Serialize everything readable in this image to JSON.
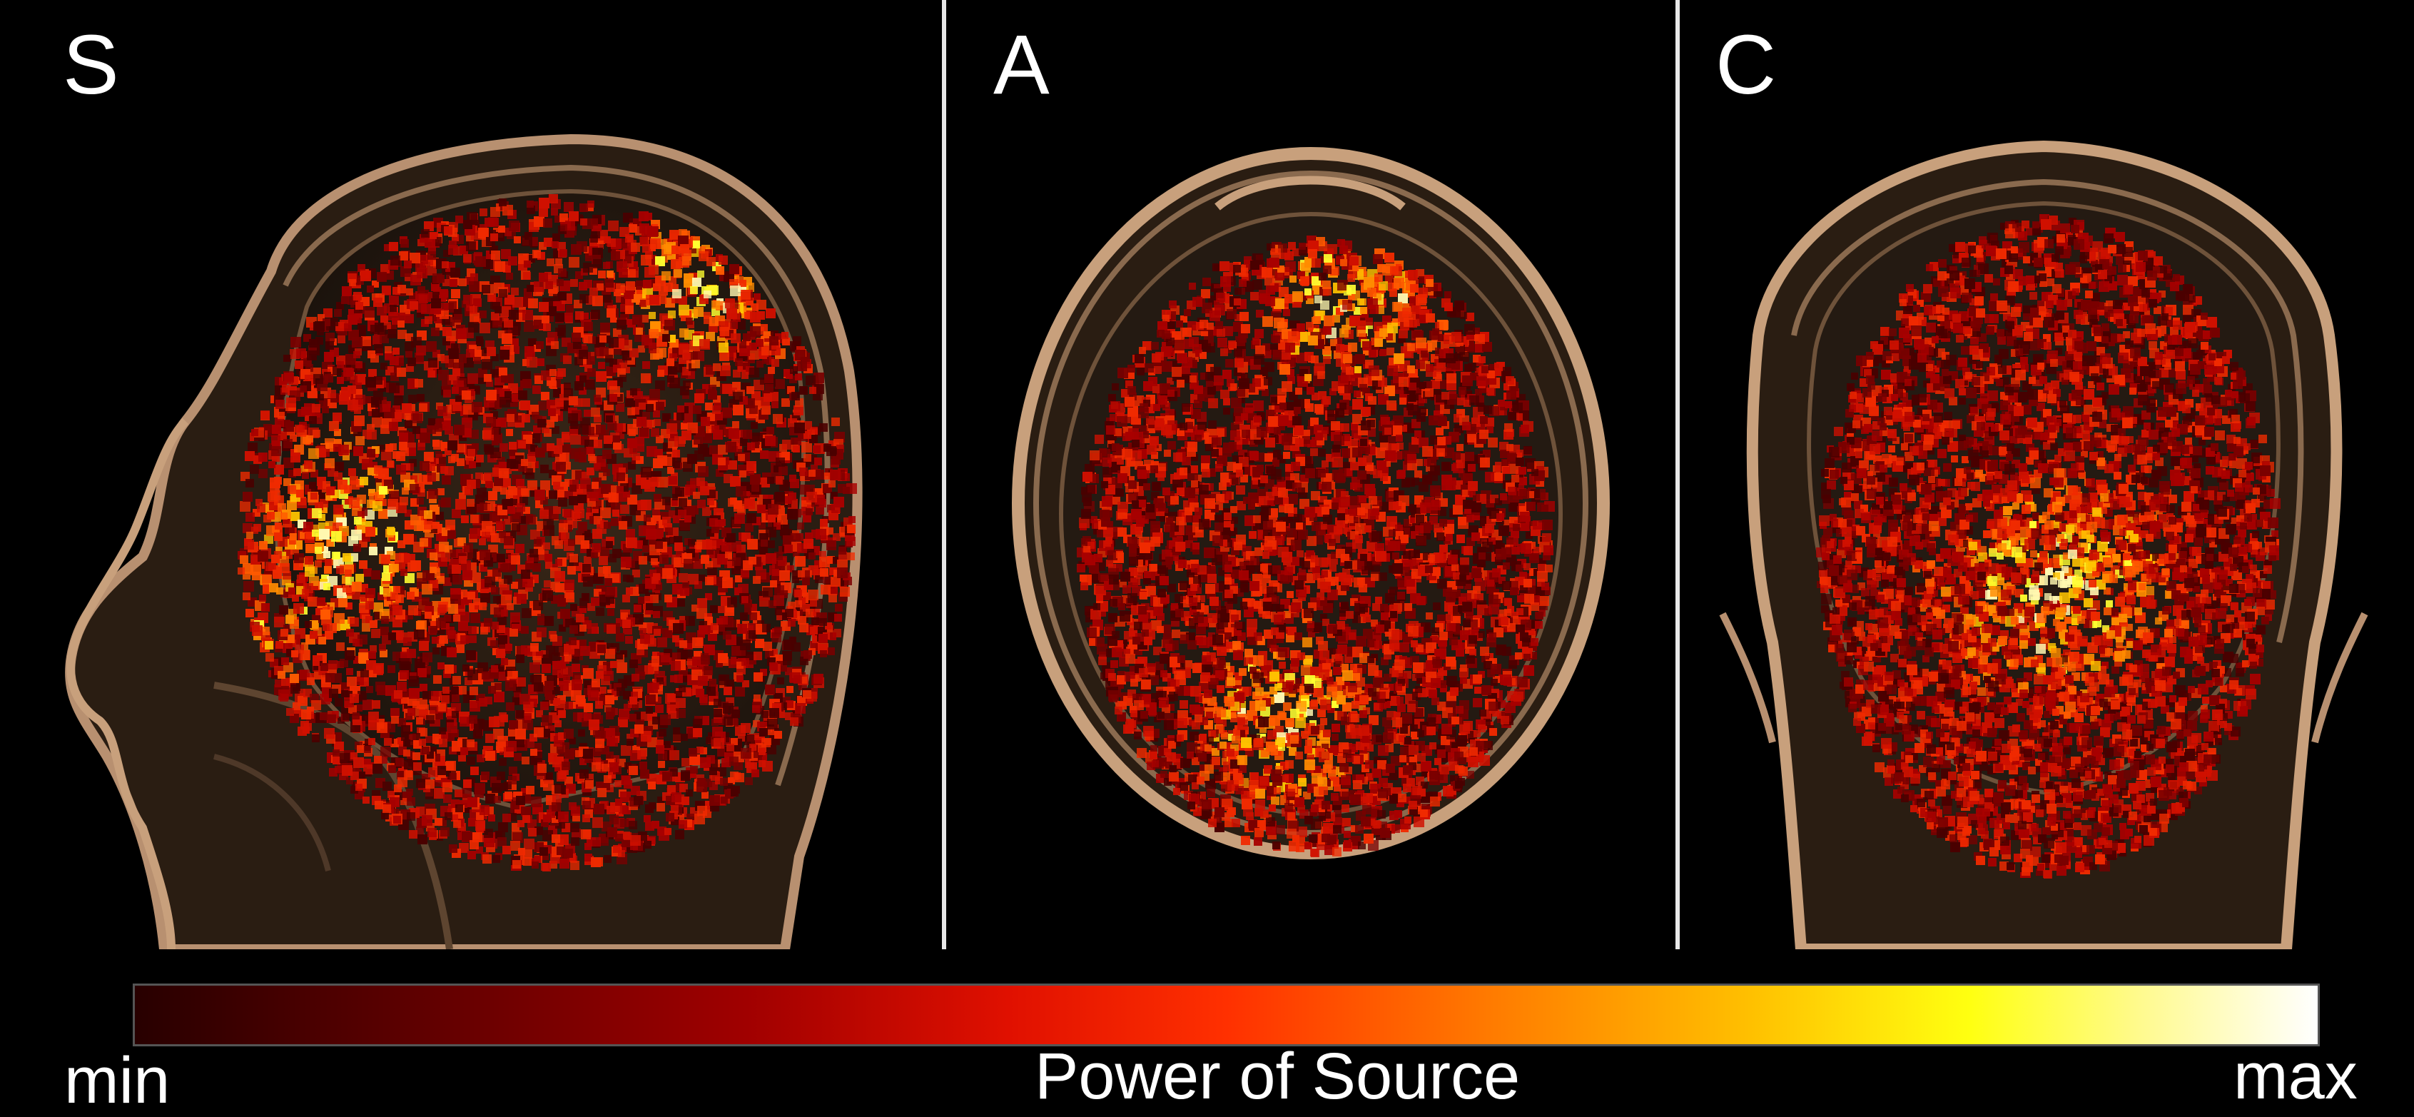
{
  "panels": [
    {
      "id": "sagittal",
      "label": "S"
    },
    {
      "id": "axial",
      "label": "A"
    },
    {
      "id": "coronal",
      "label": "C"
    }
  ],
  "colorbar": {
    "min_label": "min",
    "max_label": "max",
    "title": "Power of Source",
    "colors": [
      "#280000",
      "#a00000",
      "#ff3000",
      "#ffc000",
      "#ffff10",
      "#ffffff"
    ]
  }
}
